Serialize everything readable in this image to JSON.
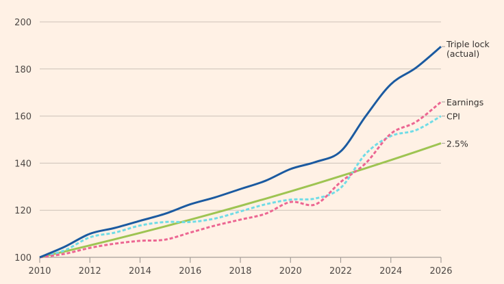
{
  "chart_data": {
    "type": "line",
    "title": "",
    "xlabel": "",
    "ylabel": "",
    "xlim": [
      2010,
      2026
    ],
    "ylim": [
      100,
      200
    ],
    "grid": true,
    "x_ticks": [
      "2010",
      "2012",
      "2014",
      "2016",
      "2018",
      "2020",
      "2022",
      "2024",
      "2026"
    ],
    "y_ticks": [
      "100",
      "120",
      "140",
      "160",
      "180",
      "200"
    ],
    "x": [
      2010,
      2011,
      2012,
      2013,
      2014,
      2015,
      2016,
      2017,
      2018,
      2019,
      2020,
      2021,
      2022,
      2023,
      2024,
      2025,
      2026
    ],
    "series": [
      {
        "name": "Triple lock",
        "label_lines": [
          "Triple lock",
          "(actual)"
        ],
        "color": "#1b5aa0",
        "style": "solid",
        "values": [
          100,
          104.5,
          110,
          112.5,
          115.5,
          118.5,
          122.5,
          125.5,
          129,
          132.5,
          137.5,
          140.5,
          145,
          160,
          173.5,
          180.5,
          189.5
        ]
      },
      {
        "name": "Earnings",
        "label_lines": [
          "Earnings"
        ],
        "color": "#ec6692",
        "style": "dashed",
        "values": [
          100,
          101.5,
          104,
          105.8,
          107,
          107.5,
          110.5,
          113.5,
          116,
          118.5,
          123.5,
          122.5,
          132,
          140,
          152.5,
          157.5,
          166
        ]
      },
      {
        "name": "CPI",
        "label_lines": [
          "CPI"
        ],
        "color": "#70dce6",
        "style": "dashed",
        "values": [
          100,
          103,
          108.5,
          110.5,
          113.5,
          115,
          115,
          116.5,
          119.5,
          122.5,
          124.5,
          125,
          129.5,
          144,
          151.5,
          154,
          160
        ]
      },
      {
        "name": "2.5%",
        "label_lines": [
          "2.5%"
        ],
        "color": "#9ec452",
        "style": "solid",
        "values": [
          100,
          102.5,
          105.06,
          107.69,
          110.38,
          113.14,
          115.97,
          118.87,
          121.84,
          124.89,
          128.01,
          131.21,
          134.49,
          137.85,
          141.3,
          144.83,
          148.45
        ]
      }
    ],
    "legend": "inline-right",
    "colors": {
      "background": "#fff1e5",
      "grid": "#ccc1b7",
      "axis": "#a39d98",
      "text": "#4d4845"
    }
  }
}
